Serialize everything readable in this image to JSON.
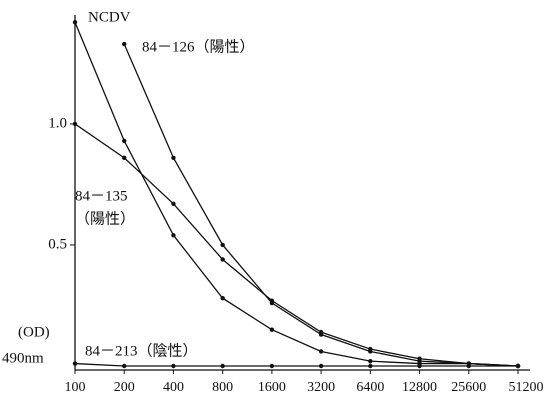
{
  "chart_data": {
    "type": "line",
    "categories": [
      "100",
      "200",
      "400",
      "800",
      "1600",
      "3200",
      "6400",
      "12800",
      "25600",
      "51200"
    ],
    "y_label": "(OD)",
    "y_unit": "490nm",
    "ylim": [
      0,
      1.45
    ],
    "yticks": [
      0.5,
      {
        "value": 1.0,
        "label": "1.0"
      }
    ],
    "color": "#111111",
    "series": [
      {
        "name": "NCDV",
        "color": "#111111",
        "values": [
          1.42,
          0.93,
          0.54,
          0.28,
          0.15,
          0.06,
          0.02,
          0.01,
          0.01,
          0.0
        ]
      },
      {
        "name": "84－126（陽性）",
        "color": "#111111",
        "values": [
          null,
          1.33,
          0.86,
          0.5,
          0.26,
          0.13,
          0.06,
          0.02,
          0.01,
          0.0
        ]
      },
      {
        "name": "84－135",
        "color": "#111111",
        "values": [
          1.0,
          0.86,
          0.67,
          0.44,
          0.27,
          0.14,
          0.07,
          0.03,
          0.01,
          0.0
        ]
      },
      {
        "name": "84－213（陰性）",
        "color": "#111111",
        "values": [
          0.01,
          0.0,
          0.0,
          0.0,
          0.0,
          0.0,
          0.0,
          0.0,
          0.0,
          0.0
        ]
      }
    ],
    "annotations": [
      "（陽性）"
    ]
  }
}
